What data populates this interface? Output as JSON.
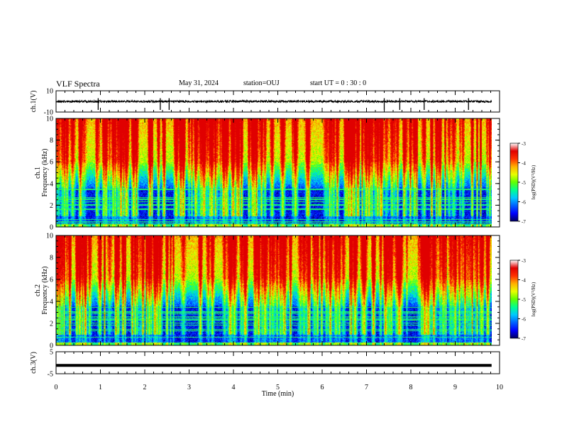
{
  "header": {
    "title": "VLF Spectra",
    "date": "May 31, 2024",
    "station": "station=OUJ",
    "start": "start  UT =   0  : 30 : 0"
  },
  "colors": {
    "spectrum_scale": [
      "#000060",
      "#0000ff",
      "#0060ff",
      "#00c8ff",
      "#00ff90",
      "#60ff00",
      "#e8ff00",
      "#ffb000",
      "#ff3000",
      "#e00000",
      "#ffffff"
    ]
  },
  "chart_data": [
    {
      "type": "line",
      "panel": "ch1-waveform",
      "ylabel": "ch.1(V)",
      "ylim": [
        -10,
        10
      ],
      "yticks": [
        "10",
        "-10"
      ],
      "series": [
        {
          "baseline": 0,
          "noise_amplitude": 1.0,
          "spike_times_min": [
            0.95,
            2.35,
            2.55,
            7.4,
            7.75,
            8.3,
            9.3
          ]
        }
      ]
    },
    {
      "type": "heatmap",
      "panel": "ch1-spectrogram",
      "ylabel": "Frequency (kHz)",
      "channel_label": "ch.1",
      "xlim": [
        0,
        10
      ],
      "ylim": [
        0,
        10
      ],
      "yticks": [
        "0",
        "2",
        "4",
        "6",
        "8",
        "10"
      ],
      "colorbar": {
        "label": "log(PSD)(V²/Hz)",
        "range": [
          -7,
          -3
        ],
        "ticks": [
          "-3",
          "-4",
          "-5",
          "-6",
          "-7"
        ]
      }
    },
    {
      "type": "heatmap",
      "panel": "ch2-spectrogram",
      "ylabel": "Frequency (kHz)",
      "channel_label": "ch.2",
      "xlim": [
        0,
        10
      ],
      "ylim": [
        0,
        10
      ],
      "yticks": [
        "0",
        "2",
        "4",
        "6",
        "8",
        "10"
      ],
      "colorbar": {
        "label": "log(PSD)(V²/Hz)",
        "range": [
          -7,
          -3
        ],
        "ticks": [
          "-3",
          "-4",
          "-5",
          "-6",
          "-7"
        ]
      }
    },
    {
      "type": "line",
      "panel": "ch3-waveform",
      "ylabel": "ch.3(V)",
      "ylim": [
        -5,
        5
      ],
      "yticks": [
        "5",
        "-5"
      ],
      "series": [
        {
          "baseline": -1.2
        }
      ]
    }
  ],
  "xaxis": {
    "label": "Time  (min)",
    "ticks": [
      "0",
      "1",
      "2",
      "3",
      "4",
      "5",
      "6",
      "7",
      "8",
      "9",
      "10"
    ],
    "data_end_min": 9.82
  }
}
